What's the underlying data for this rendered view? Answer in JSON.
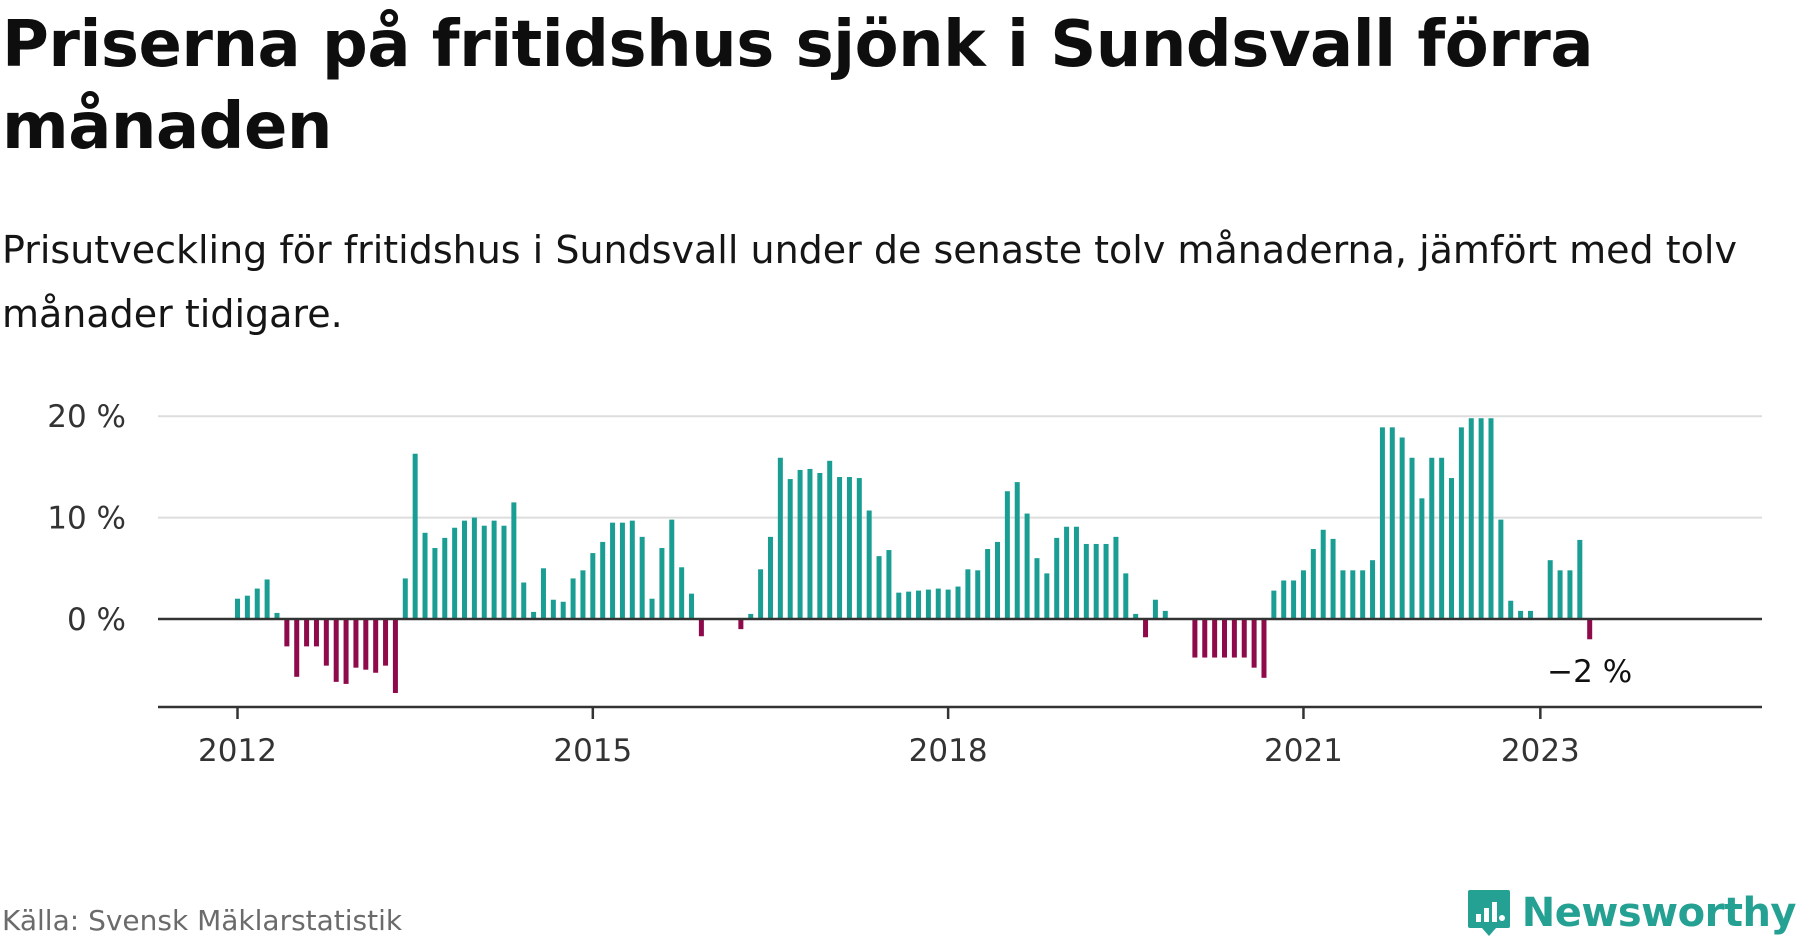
{
  "title": "Priserna på fritidshus sjönk i Sundsvall förra månaden",
  "subtitle": "Prisutveckling för fritidshus i Sundsvall under de senaste tolv månaderna, jämfört med tolv månader tidigare.",
  "source": "Källa: Svensk Mäklarstatistik",
  "brand": "Newsworthy",
  "colors": {
    "positive": "#1a9e93",
    "negative": "#8e0a4a",
    "grid": "#dddddd",
    "axis": "#333333",
    "brand": "#24a193"
  },
  "chart_data": {
    "type": "bar",
    "x_start": "2012-01",
    "y_ticks": [
      0,
      10,
      20
    ],
    "y_tick_labels": [
      "0 %",
      "10 %",
      "20 %"
    ],
    "ylim": [
      -8.5,
      20.5
    ],
    "x_ticks": [
      "2012-01",
      "2015-01",
      "2018-01",
      "2021-01",
      "2023-01"
    ],
    "x_tick_labels": [
      "2012",
      "2015",
      "2018",
      "2021",
      "2023"
    ],
    "annotation": "−2 %",
    "grid": true,
    "values": [
      2,
      2.3,
      3,
      3.9,
      0.6,
      -2.7,
      -5.7,
      -2.7,
      -2.7,
      -4.6,
      -6.2,
      -6.4,
      -4.8,
      -5,
      -5.3,
      -4.6,
      -7.3,
      4,
      16.3,
      8.5,
      7,
      8,
      9,
      9.7,
      10,
      9.2,
      9.7,
      9.2,
      11.5,
      3.6,
      0.7,
      5,
      1.9,
      1.7,
      4,
      4.8,
      6.5,
      7.6,
      9.5,
      9.5,
      9.7,
      8.1,
      2,
      7,
      9.8,
      5.1,
      2.5,
      -1.7,
      0,
      0,
      0,
      -1,
      0.5,
      4.9,
      8.1,
      15.9,
      13.8,
      14.7,
      14.8,
      14.4,
      15.6,
      14,
      14,
      13.9,
      10.7,
      6.2,
      6.8,
      2.6,
      2.7,
      2.8,
      2.9,
      3,
      2.9,
      3.2,
      4.9,
      4.8,
      6.9,
      7.6,
      12.6,
      13.5,
      10.4,
      6,
      4.5,
      8,
      9.1,
      9.1,
      7.4,
      7.4,
      7.4,
      8.1,
      4.5,
      0.5,
      -1.8,
      1.9,
      0.8,
      0,
      0,
      -3.8,
      -3.8,
      -3.8,
      -3.8,
      -3.8,
      -3.8,
      -4.8,
      -5.8,
      2.8,
      3.8,
      3.8,
      4.8,
      6.9,
      8.8,
      7.9,
      4.8,
      4.8,
      4.8,
      5.8,
      18.9,
      18.9,
      17.9,
      15.9,
      11.9,
      15.9,
      15.9,
      13.9,
      18.9,
      19.8,
      19.8,
      19.8,
      9.8,
      1.8,
      0.8,
      0.8,
      0,
      5.8,
      4.8,
      4.8,
      7.8,
      -2
    ]
  }
}
